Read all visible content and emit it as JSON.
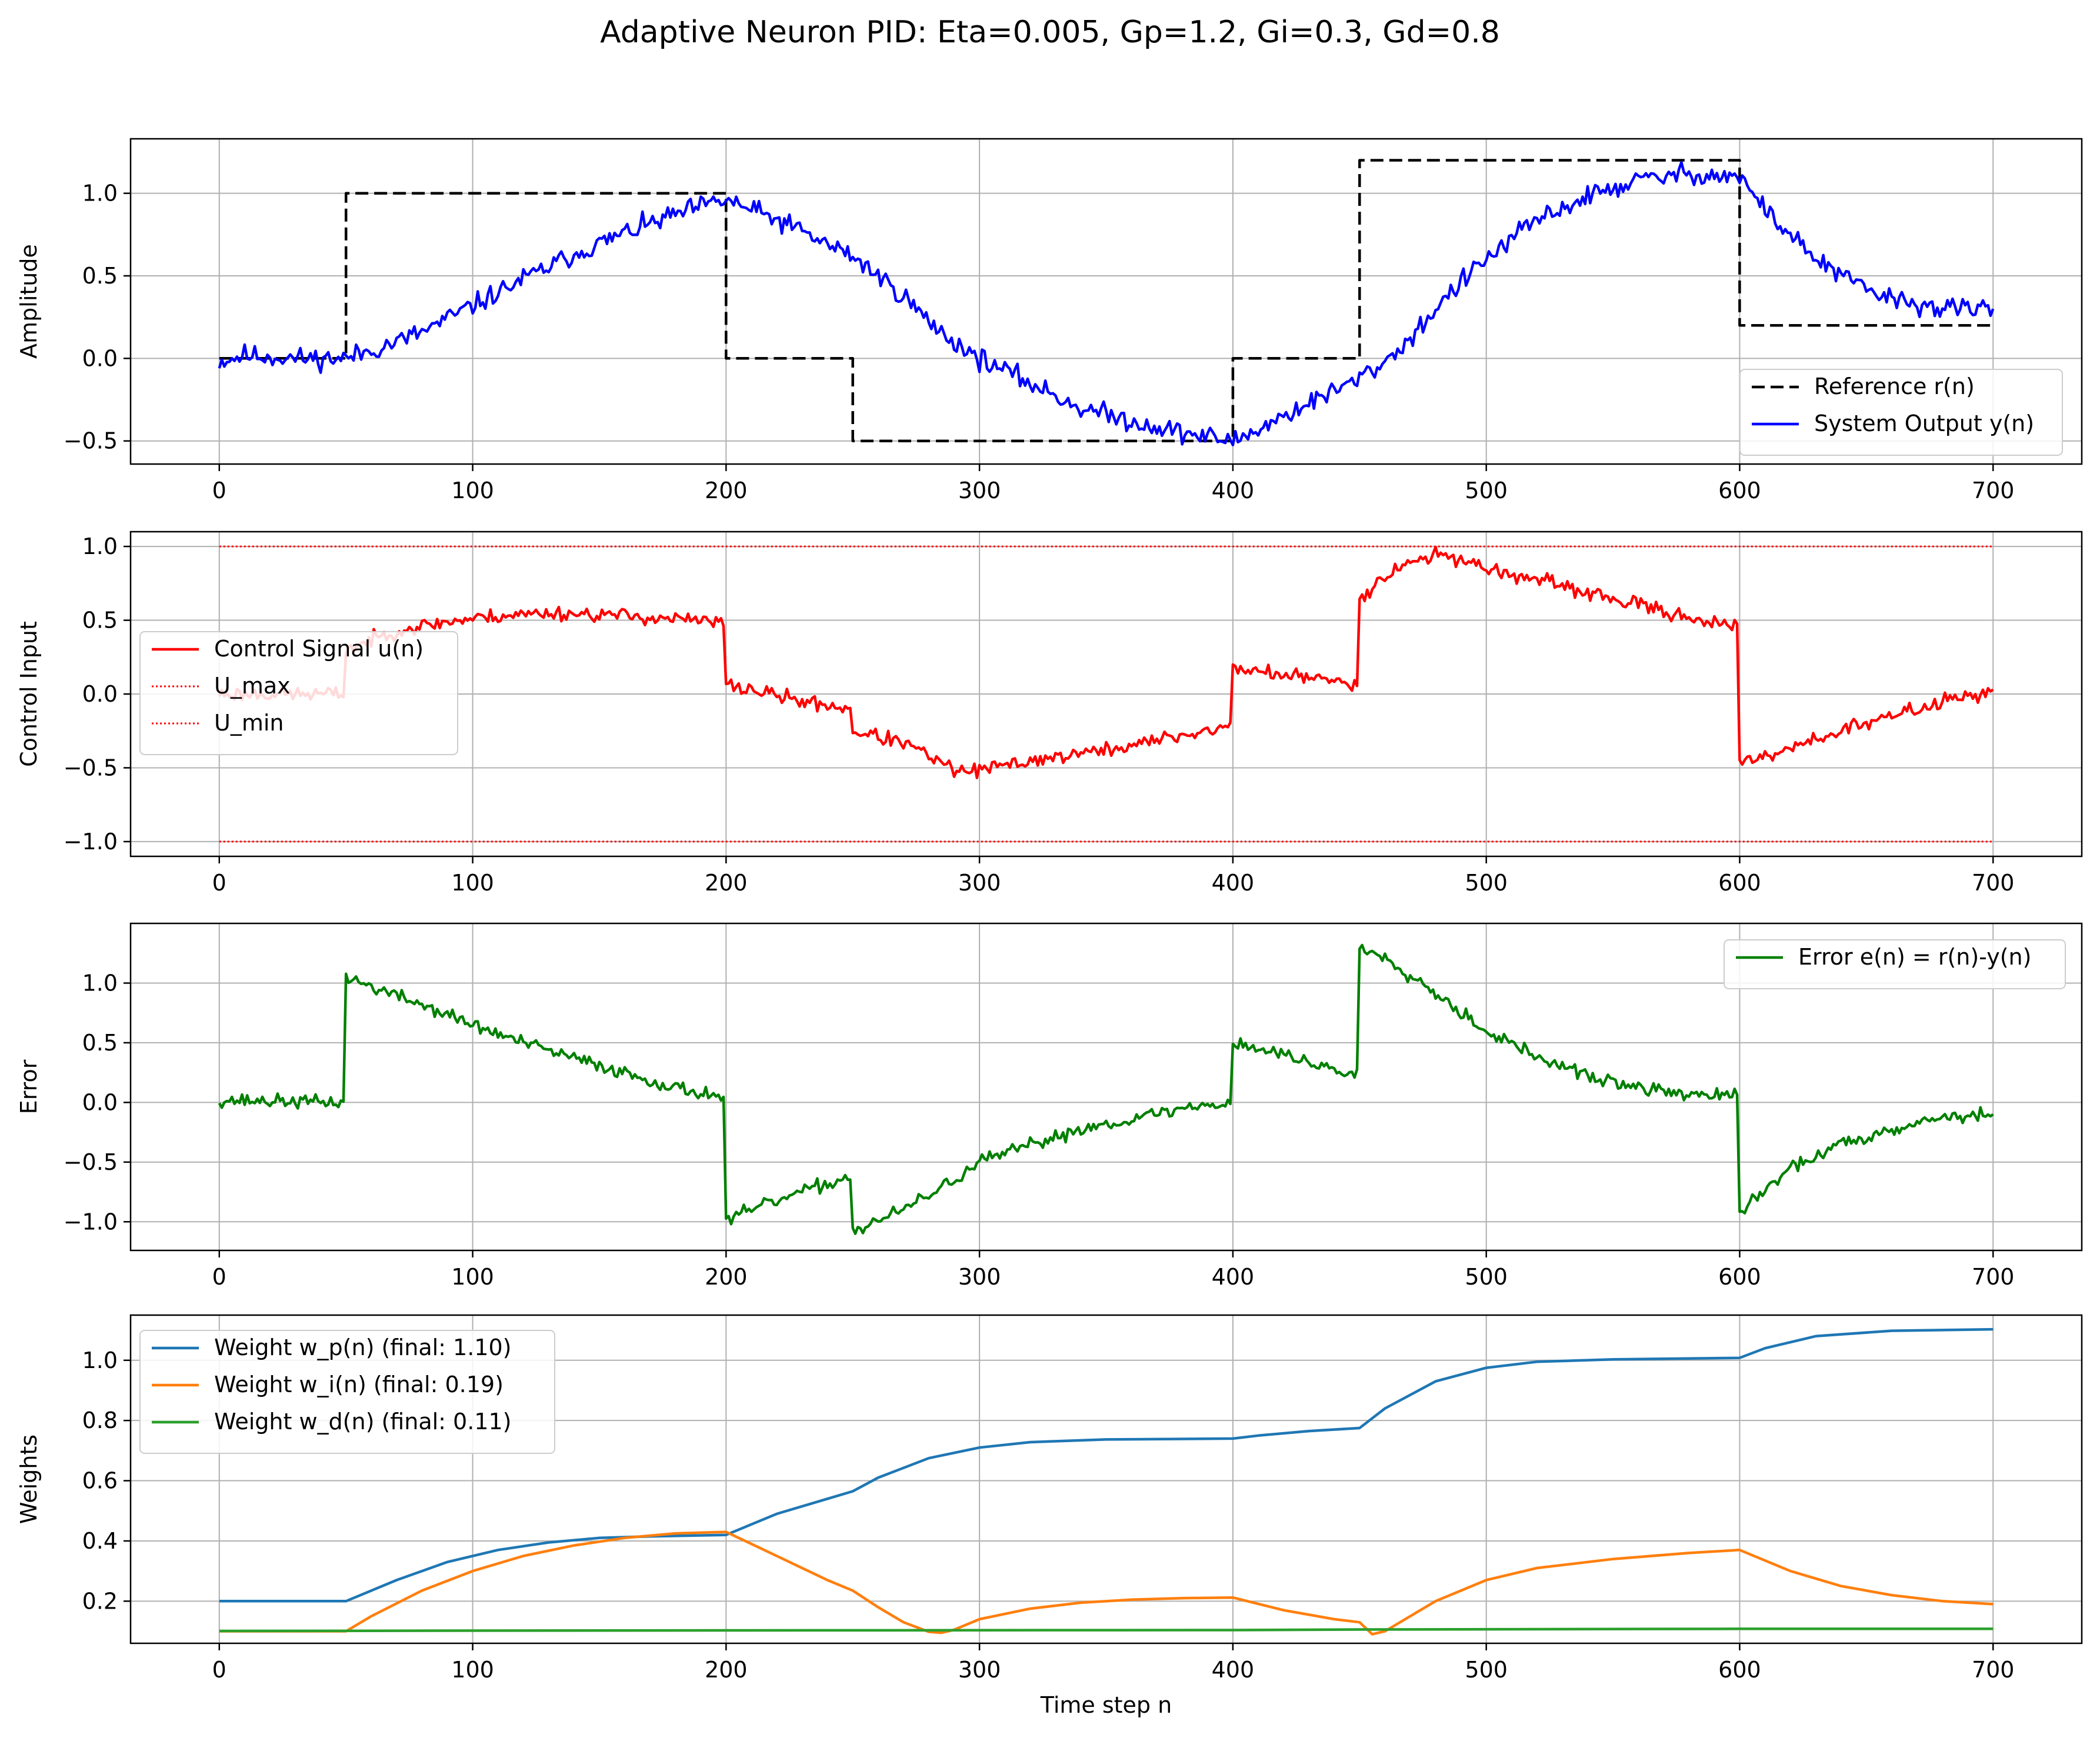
{
  "figure": {
    "title": "Adaptive Neuron PID: Eta=0.005, Gp=1.2, Gi=0.3, Gd=0.8"
  },
  "colors": {
    "reference": "#000000",
    "output": "#0000ff",
    "control": "#ff0000",
    "limits": "#ff0000",
    "error": "#008000",
    "w_p": "#1f77b4",
    "w_i": "#ff7f0e",
    "w_d": "#2ca02c",
    "grid": "#b0b0b0"
  },
  "chart_data": [
    {
      "type": "line",
      "id": "response",
      "xlabel": "",
      "ylabel": "Amplitude",
      "xlim": [
        -35,
        735
      ],
      "ylim": [
        -0.64,
        1.33
      ],
      "xticks": [
        0,
        100,
        200,
        300,
        400,
        500,
        600,
        700
      ],
      "yticks": [
        -0.5,
        0.0,
        0.5,
        1.0
      ],
      "ytick_labels": [
        "−0.5",
        "0.0",
        "0.5",
        "1.0"
      ],
      "grid": true,
      "legend_position": "lower-right",
      "series": [
        {
          "name": "Reference r(n)",
          "key": "reference",
          "style": "dashed",
          "x": [
            0,
            50,
            50,
            200,
            200,
            250,
            250,
            400,
            400,
            450,
            450,
            600,
            600,
            700
          ],
          "y": [
            0,
            0,
            1.0,
            1.0,
            0,
            0,
            -0.5,
            -0.5,
            0,
            0,
            1.2,
            1.2,
            0.2,
            0.2
          ]
        },
        {
          "name": "System Output y(n)",
          "key": "output",
          "style": "solid",
          "noise": 0.045,
          "seed": 11,
          "x": [
            0,
            10,
            20,
            30,
            40,
            50,
            60,
            70,
            80,
            90,
            100,
            120,
            140,
            160,
            180,
            190,
            200,
            210,
            220,
            230,
            240,
            250,
            260,
            270,
            280,
            290,
            300,
            320,
            340,
            360,
            380,
            400,
            410,
            420,
            430,
            440,
            450,
            460,
            470,
            480,
            490,
            500,
            520,
            540,
            560,
            580,
            600,
            610,
            620,
            630,
            640,
            650,
            660,
            680,
            700
          ],
          "y": [
            -0.02,
            0.02,
            0.01,
            0.0,
            0.0,
            0.0,
            0.05,
            0.1,
            0.16,
            0.24,
            0.32,
            0.48,
            0.63,
            0.76,
            0.87,
            0.92,
            0.96,
            0.9,
            0.84,
            0.77,
            0.69,
            0.62,
            0.5,
            0.38,
            0.22,
            0.1,
            0.0,
            -0.15,
            -0.3,
            -0.38,
            -0.45,
            -0.5,
            -0.43,
            -0.35,
            -0.27,
            -0.2,
            -0.12,
            -0.02,
            0.12,
            0.3,
            0.46,
            0.6,
            0.84,
            0.98,
            1.08,
            1.12,
            1.1,
            0.9,
            0.75,
            0.6,
            0.5,
            0.42,
            0.36,
            0.3,
            0.3
          ]
        }
      ]
    },
    {
      "type": "line",
      "id": "control",
      "xlabel": "",
      "ylabel": "Control Input",
      "xlim": [
        -35,
        735
      ],
      "ylim": [
        -1.1,
        1.1
      ],
      "xticks": [
        0,
        100,
        200,
        300,
        400,
        500,
        600,
        700
      ],
      "yticks": [
        -1.0,
        -0.5,
        0.0,
        0.5,
        1.0
      ],
      "ytick_labels": [
        "−1.0",
        "−0.5",
        "0.0",
        "0.5",
        "1.0"
      ],
      "grid": true,
      "legend_position": "center-left",
      "series": [
        {
          "name": "Control Signal u(n)",
          "key": "control",
          "style": "solid",
          "noise": 0.035,
          "seed": 23,
          "x": [
            0,
            49,
            50,
            70,
            90,
            110,
            130,
            150,
            180,
            199,
            200,
            210,
            230,
            249,
            250,
            270,
            280,
            290,
            300,
            320,
            350,
            380,
            399,
            400,
            420,
            449,
            450,
            460,
            470,
            480,
            490,
            500,
            530,
            560,
            599,
            600,
            610,
            630,
            650,
            680,
            700
          ],
          "y": [
            0.0,
            0.0,
            0.3,
            0.43,
            0.49,
            0.53,
            0.55,
            0.54,
            0.51,
            0.48,
            0.06,
            0.03,
            -0.05,
            -0.1,
            -0.25,
            -0.33,
            -0.42,
            -0.52,
            -0.52,
            -0.45,
            -0.38,
            -0.28,
            -0.22,
            0.18,
            0.13,
            0.07,
            0.65,
            0.8,
            0.9,
            0.94,
            0.92,
            0.85,
            0.73,
            0.6,
            0.45,
            -0.48,
            -0.42,
            -0.3,
            -0.2,
            -0.05,
            0.03
          ]
        },
        {
          "name": "U_max",
          "key": "limits",
          "style": "dotted",
          "x": [
            0,
            700
          ],
          "y": [
            1.0,
            1.0
          ]
        },
        {
          "name": "U_min",
          "key": "limits",
          "style": "dotted",
          "x": [
            0,
            700
          ],
          "y": [
            -1.0,
            -1.0
          ]
        }
      ]
    },
    {
      "type": "line",
      "id": "error",
      "xlabel": "",
      "ylabel": "Error",
      "xlim": [
        -35,
        735
      ],
      "ylim": [
        -1.24,
        1.5
      ],
      "xticks": [
        0,
        100,
        200,
        300,
        400,
        500,
        600,
        700
      ],
      "yticks": [
        -1.0,
        -0.5,
        0.0,
        0.5,
        1.0
      ],
      "ytick_labels": [
        "−1.0",
        "−0.5",
        "0.0",
        "0.5",
        "1.0"
      ],
      "grid": true,
      "legend_position": "upper-right",
      "series": [
        {
          "name": "Error e(n) = r(n)-y(n)",
          "key": "error",
          "style": "solid",
          "noise": 0.04,
          "seed": 37,
          "x": [
            0,
            49,
            50,
            60,
            80,
            100,
            120,
            140,
            160,
            180,
            199,
            200,
            210,
            230,
            249,
            250,
            270,
            290,
            300,
            320,
            340,
            360,
            380,
            399,
            400,
            420,
            449,
            450,
            460,
            480,
            500,
            520,
            540,
            560,
            580,
            599,
            600,
            620,
            640,
            660,
            680,
            700
          ],
          "y": [
            0.02,
            0.0,
            1.05,
            0.97,
            0.82,
            0.65,
            0.5,
            0.37,
            0.25,
            0.12,
            0.05,
            -1.0,
            -0.9,
            -0.75,
            -0.62,
            -1.08,
            -0.9,
            -0.65,
            -0.5,
            -0.36,
            -0.22,
            -0.14,
            -0.05,
            0.0,
            0.5,
            0.4,
            0.22,
            1.3,
            1.22,
            0.92,
            0.6,
            0.38,
            0.22,
            0.12,
            0.07,
            0.05,
            -0.92,
            -0.55,
            -0.35,
            -0.22,
            -0.12,
            -0.1
          ]
        }
      ]
    },
    {
      "type": "line",
      "id": "weights",
      "xlabel": "Time step n",
      "ylabel": "Weights",
      "xlim": [
        -35,
        735
      ],
      "ylim": [
        0.06,
        1.15
      ],
      "xticks": [
        0,
        100,
        200,
        300,
        400,
        500,
        600,
        700
      ],
      "yticks": [
        0.2,
        0.4,
        0.6,
        0.8,
        1.0
      ],
      "ytick_labels": [
        "0.2",
        "0.4",
        "0.6",
        "0.8",
        "1.0"
      ],
      "grid": true,
      "legend_position": "upper-left",
      "series": [
        {
          "name": "Weight w_p(n) (final: 1.10)",
          "key": "w_p",
          "style": "solid",
          "x": [
            0,
            50,
            70,
            90,
            110,
            130,
            150,
            170,
            200,
            220,
            240,
            250,
            260,
            280,
            300,
            320,
            350,
            400,
            410,
            430,
            450,
            460,
            480,
            500,
            520,
            550,
            600,
            610,
            630,
            660,
            700
          ],
          "y": [
            0.2,
            0.2,
            0.27,
            0.33,
            0.37,
            0.395,
            0.41,
            0.415,
            0.42,
            0.49,
            0.54,
            0.565,
            0.61,
            0.675,
            0.71,
            0.728,
            0.737,
            0.74,
            0.75,
            0.765,
            0.775,
            0.84,
            0.93,
            0.975,
            0.995,
            1.003,
            1.008,
            1.04,
            1.08,
            1.098,
            1.103
          ]
        },
        {
          "name": "Weight w_i(n) (final: 0.19)",
          "key": "w_i",
          "style": "solid",
          "x": [
            0,
            50,
            60,
            80,
            100,
            120,
            140,
            160,
            180,
            200,
            220,
            240,
            250,
            260,
            270,
            280,
            285,
            290,
            300,
            320,
            340,
            360,
            380,
            400,
            420,
            440,
            450,
            455,
            460,
            470,
            480,
            500,
            520,
            550,
            580,
            600,
            620,
            640,
            660,
            680,
            700
          ],
          "y": [
            0.1,
            0.1,
            0.15,
            0.235,
            0.3,
            0.35,
            0.385,
            0.41,
            0.425,
            0.43,
            0.35,
            0.27,
            0.235,
            0.18,
            0.13,
            0.098,
            0.095,
            0.105,
            0.14,
            0.175,
            0.195,
            0.205,
            0.21,
            0.212,
            0.17,
            0.14,
            0.13,
            0.09,
            0.1,
            0.15,
            0.2,
            0.27,
            0.31,
            0.34,
            0.36,
            0.37,
            0.3,
            0.25,
            0.22,
            0.2,
            0.19
          ]
        },
        {
          "name": "Weight w_d(n) (final: 0.11)",
          "key": "w_d",
          "style": "solid",
          "x": [
            0,
            200,
            400,
            450,
            600,
            700
          ],
          "y": [
            0.101,
            0.103,
            0.104,
            0.106,
            0.108,
            0.108
          ]
        }
      ]
    }
  ]
}
